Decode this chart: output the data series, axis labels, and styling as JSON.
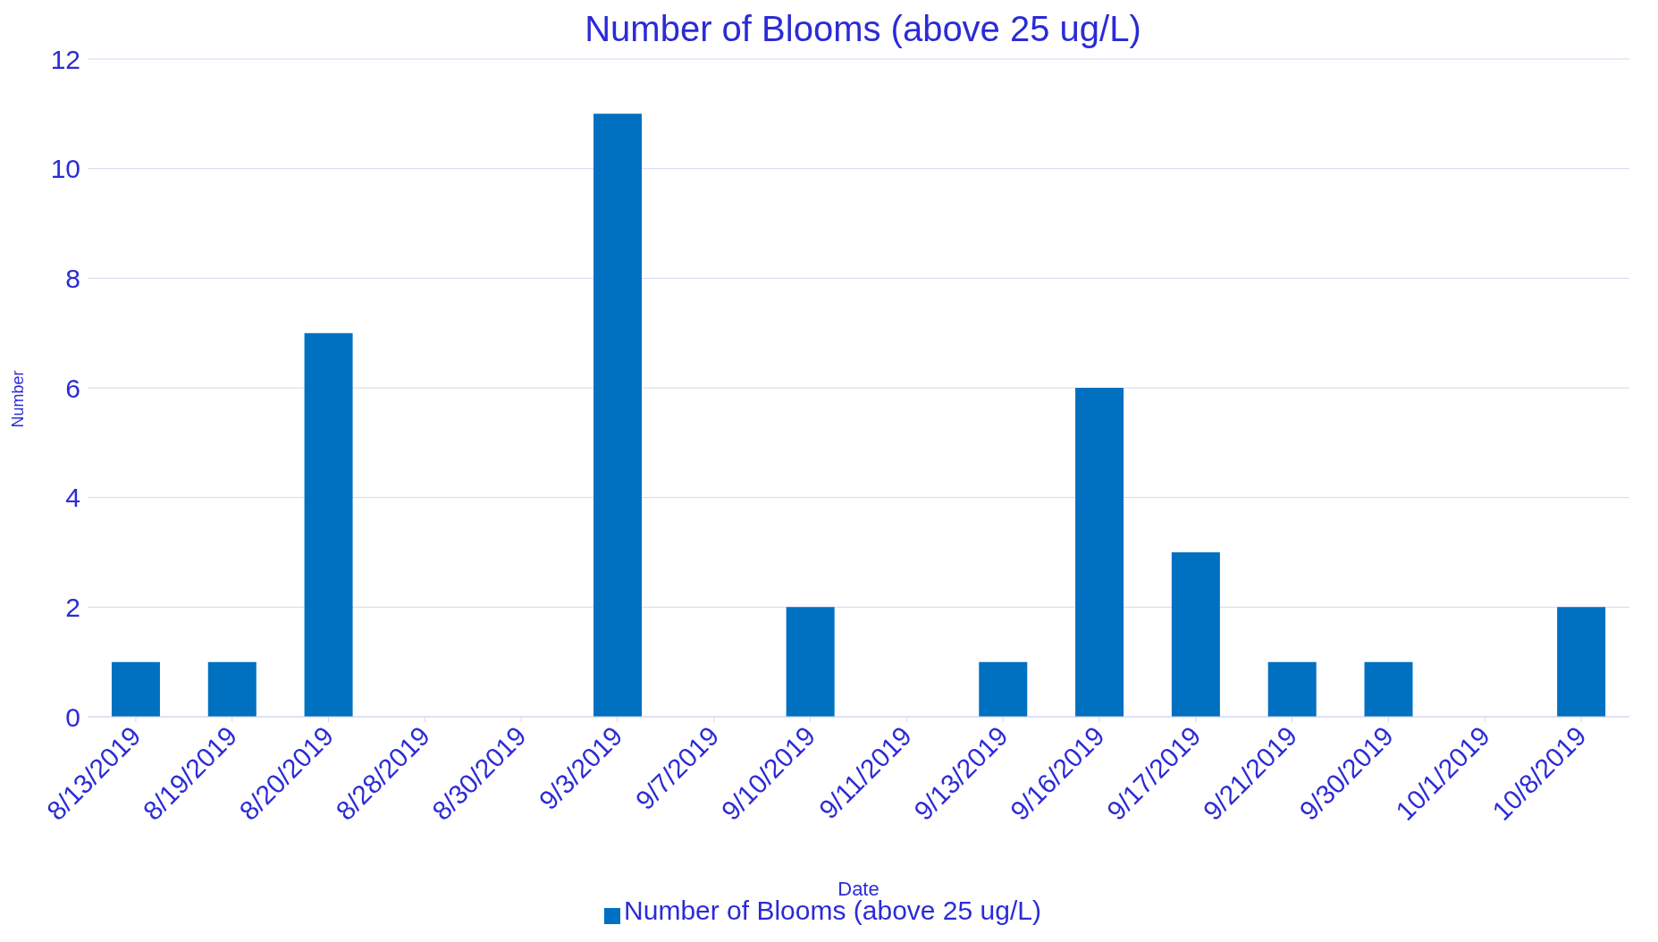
{
  "chart_data": {
    "type": "bar",
    "title": "Number of Blooms (above 25 ug/L)",
    "xlabel": "Date",
    "ylabel": "Number",
    "categories": [
      "8/13/2019",
      "8/19/2019",
      "8/20/2019",
      "8/28/2019",
      "8/30/2019",
      "9/3/2019",
      "9/7/2019",
      "9/10/2019",
      "9/11/2019",
      "9/13/2019",
      "9/16/2019",
      "9/17/2019",
      "9/21/2019",
      "9/30/2019",
      "10/1/2019",
      "10/8/2019"
    ],
    "series": [
      {
        "name": "Number of Blooms (above 25 ug/L)",
        "color": "#0070c0",
        "values": [
          1,
          1,
          7,
          0,
          0,
          11,
          0,
          2,
          0,
          1,
          6,
          3,
          1,
          1,
          0,
          2
        ]
      }
    ],
    "ylim": [
      0,
      12
    ],
    "yticks": [
      0,
      2,
      4,
      6,
      8,
      10,
      12
    ],
    "grid": "y",
    "legend": "bottom"
  }
}
